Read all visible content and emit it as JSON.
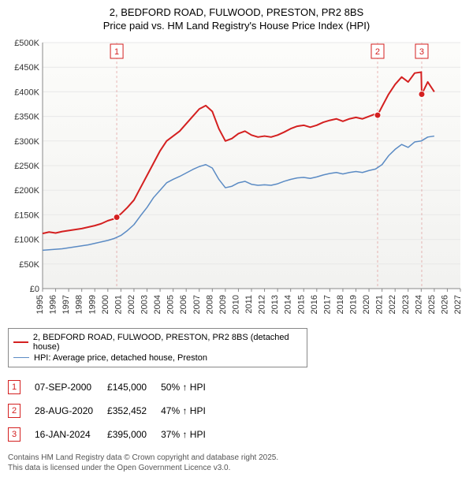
{
  "title_line1": "2, BEDFORD ROAD, FULWOOD, PRESTON, PR2 8BS",
  "title_line2": "Price paid vs. HM Land Registry's House Price Index (HPI)",
  "chart": {
    "type": "line",
    "background_color": "#ffffff",
    "plot_background_gradient": {
      "from": "#fcfcfa",
      "to": "#f2f2f0"
    },
    "grid_color": "#e8e8e8",
    "axis_line_color": "#888888",
    "tick_font_size": 11,
    "tick_color": "#333333",
    "y": {
      "min": 0,
      "max": 500000,
      "step": 50000,
      "labels": [
        "£0",
        "£50K",
        "£100K",
        "£150K",
        "£200K",
        "£250K",
        "£300K",
        "£350K",
        "£400K",
        "£450K",
        "£500K"
      ]
    },
    "x": {
      "min": 1995,
      "max": 2027,
      "step": 1,
      "labels": [
        "1995",
        "1996",
        "1997",
        "1998",
        "1999",
        "2000",
        "2001",
        "2002",
        "2003",
        "2004",
        "2005",
        "2006",
        "2007",
        "2008",
        "2009",
        "2010",
        "2011",
        "2012",
        "2013",
        "2014",
        "2015",
        "2016",
        "2017",
        "2018",
        "2019",
        "2020",
        "2021",
        "2022",
        "2023",
        "2024",
        "2025",
        "2026",
        "2027"
      ]
    },
    "series": [
      {
        "name": "2, BEDFORD ROAD, FULWOOD, PRESTON, PR2 8BS (detached house)",
        "color": "#d42020",
        "line_width": 2,
        "data": [
          [
            1995.0,
            112000
          ],
          [
            1995.5,
            115000
          ],
          [
            1996.0,
            113000
          ],
          [
            1996.5,
            116000
          ],
          [
            1997.0,
            118000
          ],
          [
            1997.5,
            120000
          ],
          [
            1998.0,
            122000
          ],
          [
            1998.5,
            125000
          ],
          [
            1999.0,
            128000
          ],
          [
            1999.5,
            132000
          ],
          [
            2000.0,
            138000
          ],
          [
            2000.5,
            142000
          ],
          [
            2000.68,
            145000
          ],
          [
            2001.0,
            152000
          ],
          [
            2001.5,
            165000
          ],
          [
            2002.0,
            180000
          ],
          [
            2002.5,
            205000
          ],
          [
            2003.0,
            230000
          ],
          [
            2003.5,
            255000
          ],
          [
            2004.0,
            280000
          ],
          [
            2004.5,
            300000
          ],
          [
            2005.0,
            310000
          ],
          [
            2005.5,
            320000
          ],
          [
            2006.0,
            335000
          ],
          [
            2006.5,
            350000
          ],
          [
            2007.0,
            365000
          ],
          [
            2007.5,
            372000
          ],
          [
            2008.0,
            360000
          ],
          [
            2008.5,
            325000
          ],
          [
            2009.0,
            300000
          ],
          [
            2009.5,
            305000
          ],
          [
            2010.0,
            315000
          ],
          [
            2010.5,
            320000
          ],
          [
            2011.0,
            312000
          ],
          [
            2011.5,
            308000
          ],
          [
            2012.0,
            310000
          ],
          [
            2012.5,
            308000
          ],
          [
            2013.0,
            312000
          ],
          [
            2013.5,
            318000
          ],
          [
            2014.0,
            325000
          ],
          [
            2014.5,
            330000
          ],
          [
            2015.0,
            332000
          ],
          [
            2015.5,
            328000
          ],
          [
            2016.0,
            332000
          ],
          [
            2016.5,
            338000
          ],
          [
            2017.0,
            342000
          ],
          [
            2017.5,
            345000
          ],
          [
            2018.0,
            340000
          ],
          [
            2018.5,
            345000
          ],
          [
            2019.0,
            348000
          ],
          [
            2019.5,
            345000
          ],
          [
            2020.0,
            350000
          ],
          [
            2020.5,
            355000
          ],
          [
            2020.66,
            352452
          ],
          [
            2021.0,
            370000
          ],
          [
            2021.5,
            395000
          ],
          [
            2022.0,
            415000
          ],
          [
            2022.5,
            430000
          ],
          [
            2023.0,
            420000
          ],
          [
            2023.5,
            438000
          ],
          [
            2024.0,
            440000
          ],
          [
            2024.04,
            395000
          ],
          [
            2024.5,
            420000
          ],
          [
            2025.0,
            400000
          ]
        ]
      },
      {
        "name": "HPI: Average price, detached house, Preston",
        "color": "#5b8bc4",
        "line_width": 1.5,
        "data": [
          [
            1995.0,
            78000
          ],
          [
            1995.5,
            79000
          ],
          [
            1996.0,
            80000
          ],
          [
            1996.5,
            81000
          ],
          [
            1997.0,
            83000
          ],
          [
            1997.5,
            85000
          ],
          [
            1998.0,
            87000
          ],
          [
            1998.5,
            89000
          ],
          [
            1999.0,
            92000
          ],
          [
            1999.5,
            95000
          ],
          [
            2000.0,
            98000
          ],
          [
            2000.5,
            102000
          ],
          [
            2001.0,
            108000
          ],
          [
            2001.5,
            118000
          ],
          [
            2002.0,
            130000
          ],
          [
            2002.5,
            148000
          ],
          [
            2003.0,
            165000
          ],
          [
            2003.5,
            185000
          ],
          [
            2004.0,
            200000
          ],
          [
            2004.5,
            215000
          ],
          [
            2005.0,
            222000
          ],
          [
            2005.5,
            228000
          ],
          [
            2006.0,
            235000
          ],
          [
            2006.5,
            242000
          ],
          [
            2007.0,
            248000
          ],
          [
            2007.5,
            252000
          ],
          [
            2008.0,
            245000
          ],
          [
            2008.5,
            222000
          ],
          [
            2009.0,
            205000
          ],
          [
            2009.5,
            208000
          ],
          [
            2010.0,
            215000
          ],
          [
            2010.5,
            218000
          ],
          [
            2011.0,
            212000
          ],
          [
            2011.5,
            210000
          ],
          [
            2012.0,
            211000
          ],
          [
            2012.5,
            210000
          ],
          [
            2013.0,
            213000
          ],
          [
            2013.5,
            218000
          ],
          [
            2014.0,
            222000
          ],
          [
            2014.5,
            225000
          ],
          [
            2015.0,
            226000
          ],
          [
            2015.5,
            224000
          ],
          [
            2016.0,
            227000
          ],
          [
            2016.5,
            231000
          ],
          [
            2017.0,
            234000
          ],
          [
            2017.5,
            236000
          ],
          [
            2018.0,
            233000
          ],
          [
            2018.5,
            236000
          ],
          [
            2019.0,
            238000
          ],
          [
            2019.5,
            236000
          ],
          [
            2020.0,
            240000
          ],
          [
            2020.5,
            243000
          ],
          [
            2021.0,
            252000
          ],
          [
            2021.5,
            270000
          ],
          [
            2022.0,
            283000
          ],
          [
            2022.5,
            293000
          ],
          [
            2023.0,
            287000
          ],
          [
            2023.5,
            298000
          ],
          [
            2024.0,
            300000
          ],
          [
            2024.5,
            308000
          ],
          [
            2025.0,
            310000
          ]
        ]
      }
    ],
    "markers": [
      {
        "num": "1",
        "x": 2000.68,
        "y": 145000,
        "color": "#d42020"
      },
      {
        "num": "2",
        "x": 2020.66,
        "y": 352452,
        "color": "#d42020"
      },
      {
        "num": "3",
        "x": 2024.04,
        "y": 395000,
        "color": "#d42020"
      }
    ],
    "marker_dot_color": "#d42020",
    "marker_line_color": "rgba(200,60,60,0.35)",
    "marker_box_bg": "#ffffff"
  },
  "legend": {
    "items": [
      {
        "color": "#d42020",
        "width": 2,
        "label": "2, BEDFORD ROAD, FULWOOD, PRESTON, PR2 8BS (detached house)"
      },
      {
        "color": "#5b8bc4",
        "width": 1.5,
        "label": "HPI: Average price, detached house, Preston"
      }
    ]
  },
  "marker_rows": [
    {
      "num": "1",
      "date": "07-SEP-2000",
      "price": "£145,000",
      "delta": "50% ↑ HPI"
    },
    {
      "num": "2",
      "date": "28-AUG-2020",
      "price": "£352,452",
      "delta": "47% ↑ HPI"
    },
    {
      "num": "3",
      "date": "16-JAN-2024",
      "price": "£395,000",
      "delta": "37% ↑ HPI"
    }
  ],
  "footer": {
    "line1": "Contains HM Land Registry data © Crown copyright and database right 2025.",
    "line2": "This data is licensed under the Open Government Licence v3.0."
  }
}
